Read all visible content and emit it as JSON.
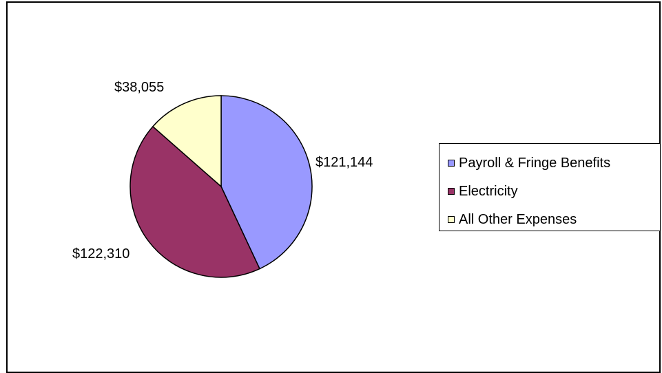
{
  "chart_data": {
    "type": "pie",
    "categories": [
      "Payroll & Fringe Benefits",
      "Electricity",
      "All Other Expenses"
    ],
    "values": [
      121144,
      122310,
      38055
    ],
    "data_labels": [
      "$121,144",
      "$122,310",
      "$38,055"
    ],
    "colors": [
      "#9999ff",
      "#993366",
      "#ffffcc"
    ],
    "title": "",
    "legend_position": "right"
  }
}
